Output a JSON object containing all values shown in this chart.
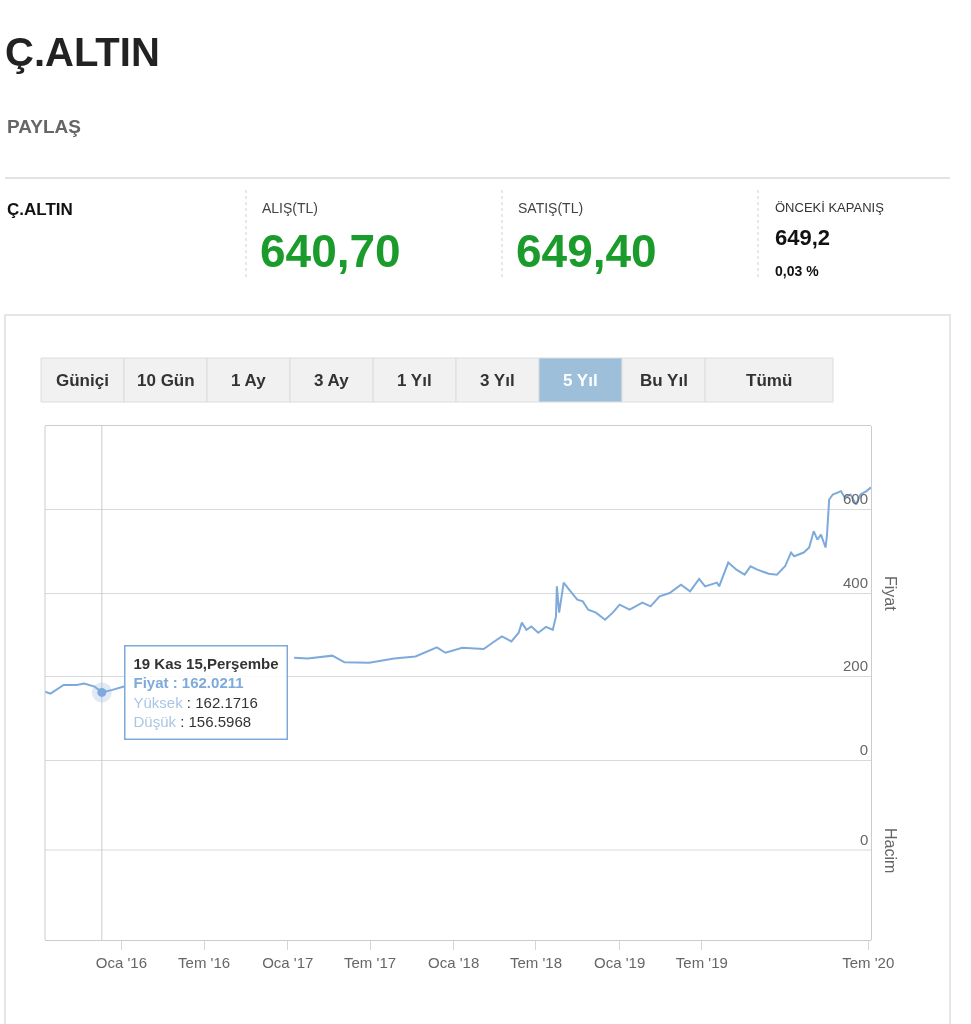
{
  "chart_data": [
    {
      "type": "other",
      "title": "Ç.ALTIN",
      "annotations": [
        "PAYLAŞ",
        "Ç.ALTIN",
        "ALIŞ(TL)",
        "640,70",
        "SATIŞ(TL)",
        "649,40",
        "ÖNCEKİ KAPANIŞ",
        "649,2",
        "0,03 %"
      ]
    },
    {
      "type": "other",
      "categories": [
        "Güniçi",
        "10 Gün",
        "1 Ay",
        "3 Ay",
        "1 Yıl",
        "3 Yıl",
        "5 Yıl",
        "Bu Yıl",
        "Tümü"
      ],
      "colors": [
        "#f1f1f1",
        "#f1f1f1",
        "#f1f1f1",
        "#f1f1f1",
        "#f1f1f1",
        "#f1f1f1",
        "#9dbfd9",
        "#f1f1f1",
        "#f1f1f1"
      ]
    },
    {
      "type": "line",
      "ylabel": "Fiyat",
      "xlim": [
        "2015-07-17",
        "2020-07-07"
      ],
      "ylim": [
        -431,
        800
      ],
      "yticks": [
        0,
        200,
        400,
        600
      ],
      "grid": "y",
      "marker": "none",
      "line_style": "solid",
      "xticks": [
        {
          "value": "2016-01-01",
          "label": "Oca '16"
        },
        {
          "value": "2016-07-01",
          "label": "Tem '16"
        },
        {
          "value": "2017-01-01",
          "label": "Oca '17"
        },
        {
          "value": "2017-07-01",
          "label": "Tem '17"
        },
        {
          "value": "2018-01-01",
          "label": "Oca '18"
        },
        {
          "value": "2018-07-01",
          "label": "Tem '18"
        },
        {
          "value": "2019-01-01",
          "label": "Oca '19"
        },
        {
          "value": "2019-07-01",
          "label": "Tem '19"
        },
        {
          "value": "2020-07-01",
          "label": "Tem '20"
        }
      ],
      "x": [
        "2015-07-17",
        "2015-07-29",
        "2015-08-27",
        "2015-09-25",
        "2015-10-11",
        "2015-11-03",
        "2015-11-19",
        "2015-12-12",
        "2016-01-07",
        "2016-02-10",
        "2016-04-10",
        "2016-06-30",
        "2016-09-19",
        "2016-12-09",
        "2017-01-15",
        "2017-02-14",
        "2017-04-09",
        "2017-05-06",
        "2017-06-29",
        "2017-08-23",
        "2017-10-09",
        "2017-11-25",
        "2017-12-14",
        "2018-01-20",
        "2018-03-08",
        "2018-03-29",
        "2018-04-17",
        "2018-05-08",
        "2018-05-24",
        "2018-05-31",
        "2018-06-10",
        "2018-06-21",
        "2018-07-06",
        "2018-07-23",
        "2018-08-07",
        "2018-08-14",
        "2018-08-16",
        "2018-08-21",
        "2018-08-31",
        "2018-09-12",
        "2018-09-30",
        "2018-10-12",
        "2018-10-24",
        "2018-11-10",
        "2018-11-30",
        "2018-12-17",
        "2019-01-01",
        "2019-01-23",
        "2019-02-20",
        "2019-03-10",
        "2019-03-30",
        "2019-04-21",
        "2019-05-16",
        "2019-06-05",
        "2019-06-25",
        "2019-07-08",
        "2019-08-03",
        "2019-08-08",
        "2019-08-28",
        "2019-09-15",
        "2019-10-03",
        "2019-10-16",
        "2019-10-31",
        "2019-11-25",
        "2019-12-13",
        "2019-12-31",
        "2020-01-13",
        "2020-01-20",
        "2020-02-10",
        "2020-02-22",
        "2020-03-03",
        "2020-03-11",
        "2020-03-19",
        "2020-03-29",
        "2020-04-01",
        "2020-04-06",
        "2020-04-14",
        "2020-05-02",
        "2020-05-10",
        "2020-05-23",
        "2020-06-04",
        "2020-06-14",
        "2020-06-27",
        "2020-07-07"
      ],
      "series": [
        {
          "color": "#7eaadb",
          "values": [
            164,
            159,
            180,
            180,
            183,
            176,
            162.0211,
            168,
            176,
            null,
            null,
            null,
            null,
            null,
            245,
            243,
            250,
            234,
            233,
            243,
            248,
            270,
            257,
            269,
            266,
            282,
            296,
            284,
            305,
            329,
            312,
            320,
            305,
            319,
            312,
            344,
            416,
            353,
            425,
            408,
            384,
            380,
            360,
            353,
            336,
            353,
            372,
            360,
            377,
            368,
            392,
            400,
            420,
            404,
            434,
            416,
            425,
            416,
            473,
            456,
            444,
            464,
            456,
            446,
            444,
            464,
            497,
            488,
            497,
            509,
            548,
            528,
            540,
            509,
            536,
            624,
            636,
            644,
            629,
            636,
            612,
            636,
            644,
            653
          ]
        }
      ],
      "annotations": [
        {
          "text": "19 Kas 15,Perşembe\nFiyat : 162.0211\nYüksek : 162.1716\nDüşük : 156.5968",
          "x": "2015-11-19",
          "y": 162.0211
        }
      ],
      "ref_lines": [
        {
          "axis": "x",
          "value": "2015-11-19",
          "color": "#cccccc"
        }
      ]
    },
    {
      "type": "other",
      "ylabel": "Hacim",
      "annotations": [
        "0"
      ]
    }
  ]
}
